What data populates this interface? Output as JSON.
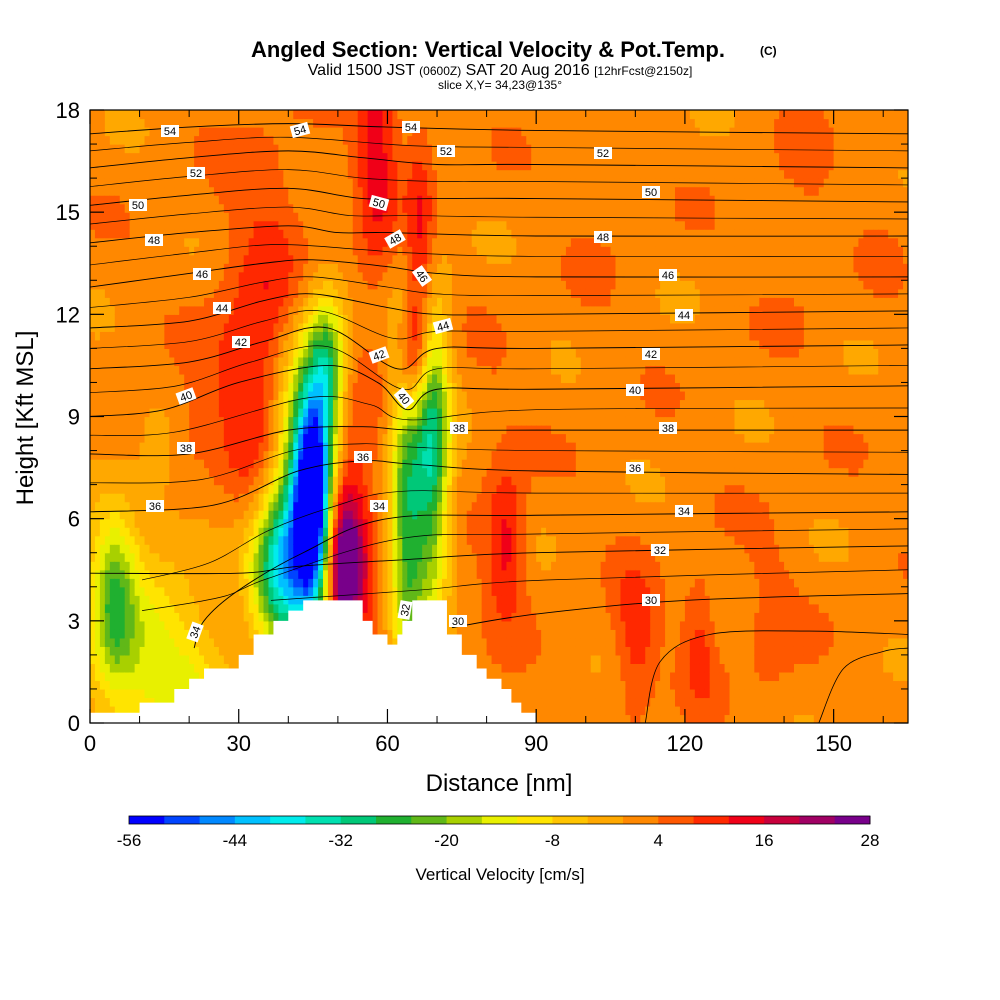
{
  "chart_data": {
    "type": "heatmap",
    "title": "Angled Section: Vertical Velocity & Pot.Temp.",
    "title_units": "(C)",
    "subtitle": {
      "prefix": "Valid 1500 JST",
      "utc": "(0600Z)",
      "date": "SAT 20 Aug 2016",
      "forecast": "[12hrFcst@2150z]"
    },
    "slice_text": "slice X,Y= 34,23@135°",
    "xlabel": "Distance [nm]",
    "ylabel": "Height [Kft MSL]",
    "xlim": [
      0,
      165
    ],
    "ylim": [
      0,
      18
    ],
    "x_ticks": [
      "0",
      "30",
      "60",
      "90",
      "120",
      "150"
    ],
    "y_ticks": [
      "0",
      "3",
      "6",
      "9",
      "12",
      "15",
      "18"
    ],
    "colorbar": {
      "label": "Vertical Velocity [cm/s]",
      "range": [
        -56,
        28
      ],
      "step": 4,
      "tick_labels": [
        "-56",
        "-44",
        "-32",
        "-20",
        "-8",
        "4",
        "16",
        "28"
      ],
      "colors": [
        "#0000ff",
        "#0044ff",
        "#0088ff",
        "#00c0ff",
        "#00ecec",
        "#00e0b0",
        "#00c878",
        "#20b030",
        "#60b818",
        "#a8d000",
        "#e8f000",
        "#ffe400",
        "#ffc400",
        "#ffa800",
        "#ff8800",
        "#ff5800",
        "#ff2800",
        "#f00018",
        "#c8003c",
        "#a00064",
        "#78008a"
      ]
    },
    "terrain_steps": [
      [
        0,
        0.3
      ],
      [
        10,
        0.6
      ],
      [
        17,
        1.0
      ],
      [
        20,
        1.3
      ],
      [
        23,
        1.6
      ],
      [
        30,
        2.0
      ],
      [
        33,
        2.6
      ],
      [
        37,
        3.0
      ],
      [
        40,
        3.3
      ],
      [
        43,
        3.6
      ],
      [
        55,
        3.0
      ],
      [
        57,
        2.6
      ],
      [
        60,
        2.3
      ],
      [
        62,
        2.6
      ],
      [
        63,
        3.0
      ],
      [
        65,
        3.6
      ],
      [
        72,
        2.6
      ],
      [
        75,
        2.0
      ],
      [
        78,
        1.6
      ],
      [
        80,
        1.3
      ],
      [
        83,
        1.0
      ],
      [
        85,
        0.6
      ],
      [
        87,
        0.3
      ],
      [
        90,
        0
      ]
    ],
    "velocity_features": [
      {
        "x": 45,
        "y": 6.5,
        "sx": 2.5,
        "sy": 2.2,
        "v": -52
      },
      {
        "x": 43,
        "y": 7.0,
        "sx": 4.5,
        "sy": 3.5,
        "v": -38
      },
      {
        "x": 38,
        "y": 4.5,
        "sx": 4,
        "sy": 1.5,
        "v": -30
      },
      {
        "x": 48,
        "y": 10.5,
        "sx": 2.5,
        "sy": 1.5,
        "v": -24
      },
      {
        "x": 51,
        "y": 4.8,
        "sx": 2.5,
        "sy": 1.5,
        "v": 27
      },
      {
        "x": 52,
        "y": 5.2,
        "sx": 4,
        "sy": 2.5,
        "v": 18
      },
      {
        "x": 38,
        "y": 11.0,
        "sx": 7,
        "sy": 3.5,
        "v": 16
      },
      {
        "x": 30,
        "y": 9.5,
        "sx": 6,
        "sy": 2,
        "v": 6
      },
      {
        "x": 58,
        "y": 17.0,
        "sx": 3,
        "sy": 3,
        "v": 15
      },
      {
        "x": 66.5,
        "y": 13.5,
        "sx": 2.2,
        "sy": 3,
        "v": 16
      },
      {
        "x": 65,
        "y": 10.8,
        "sx": 2.2,
        "sy": 1.3,
        "v": 22
      },
      {
        "x": 64,
        "y": 6.5,
        "sx": 2.5,
        "sy": 4,
        "v": -28
      },
      {
        "x": 69,
        "y": 8.0,
        "sx": 2.5,
        "sy": 3,
        "v": -34
      },
      {
        "x": 84,
        "y": 5.3,
        "sx": 2.5,
        "sy": 1.5,
        "v": 14
      },
      {
        "x": 82,
        "y": 6.5,
        "sx": 4,
        "sy": 3,
        "v": 4
      },
      {
        "x": 110,
        "y": 2.5,
        "sx": 3,
        "sy": 1.5,
        "v": 12
      },
      {
        "x": 123,
        "y": 2.5,
        "sx": 2.5,
        "sy": 1.5,
        "v": 10
      },
      {
        "x": 137,
        "y": 2.8,
        "sx": 4,
        "sy": 2,
        "v": 6
      },
      {
        "x": 144,
        "y": 16.0,
        "sx": 4,
        "sy": 4,
        "v": 4
      },
      {
        "x": 102,
        "y": 14.0,
        "sx": 4,
        "sy": 4,
        "v": 3
      },
      {
        "x": 160,
        "y": 15.5,
        "sx": 4,
        "sy": 3,
        "v": 3
      },
      {
        "x": 5,
        "y": 3.6,
        "sx": 3,
        "sy": 1.8,
        "v": -18
      },
      {
        "x": 10,
        "y": 2.5,
        "sx": 10,
        "sy": 3,
        "v": -10
      },
      {
        "x": 20,
        "y": 1.0,
        "sx": 8,
        "sy": 1.3,
        "v": -9
      },
      {
        "x": 20,
        "y": 8.3,
        "sx": 3,
        "sy": 1,
        "v": 6
      },
      {
        "x": 8,
        "y": 8.5,
        "sx": 3,
        "sy": 1,
        "v": 4
      }
    ],
    "theta_contours": [
      {
        "label": "30",
        "pts": [
          [
            73,
            2.8
          ],
          [
            90,
            3.2
          ],
          [
            120,
            3.6
          ],
          [
            165,
            3.8
          ]
        ],
        "lx": 458,
        "ly": 621,
        "rot": 0
      },
      {
        "label": "32",
        "pts": [
          [
            0,
            4.4
          ],
          [
            30,
            4.4
          ],
          [
            42,
            4.6
          ],
          [
            64,
            4.8
          ],
          [
            90,
            5.0
          ],
          [
            165,
            5.2
          ]
        ],
        "lx": 660,
        "ly": 550,
        "rot": 0
      },
      {
        "label": "34",
        "pts": [
          [
            21,
            2.2
          ],
          [
            23,
            3.0
          ],
          [
            30,
            3.9
          ],
          [
            43,
            5.0
          ],
          [
            60,
            6.0
          ],
          [
            90,
            6.1
          ],
          [
            165,
            6.2
          ]
        ],
        "lx": 195,
        "ly": 632,
        "rot": -70
      },
      {
        "label": "36",
        "pts": [
          [
            0,
            6.2
          ],
          [
            25,
            6.4
          ],
          [
            42,
            7.4
          ],
          [
            55,
            7.7
          ],
          [
            65,
            7.6
          ],
          [
            90,
            7.4
          ],
          [
            165,
            7.3
          ]
        ],
        "lx": 155,
        "ly": 506,
        "rot": 0
      },
      {
        "label": "38",
        "pts": [
          [
            0,
            7.9
          ],
          [
            20,
            7.9
          ],
          [
            40,
            8.6
          ],
          [
            55,
            8.7
          ],
          [
            65,
            8.6
          ],
          [
            90,
            8.6
          ],
          [
            165,
            8.6
          ]
        ],
        "lx": 186,
        "ly": 448,
        "rot": 0
      },
      {
        "label": "40",
        "pts": [
          [
            0,
            9.0
          ],
          [
            15,
            9.2
          ],
          [
            30,
            10.0
          ],
          [
            48,
            10.5
          ],
          [
            58,
            10.0
          ],
          [
            64,
            9.2
          ],
          [
            70,
            9.8
          ],
          [
            90,
            9.8
          ],
          [
            165,
            9.9
          ]
        ],
        "lx": 186,
        "ly": 396,
        "rot": -20
      },
      {
        "label": "42",
        "pts": [
          [
            0,
            10.4
          ],
          [
            20,
            10.6
          ],
          [
            35,
            11.2
          ],
          [
            48,
            11.6
          ],
          [
            62,
            10.4
          ],
          [
            70,
            11.0
          ],
          [
            90,
            11.0
          ],
          [
            165,
            11.1
          ]
        ],
        "lx": 241,
        "ly": 342,
        "rot": 0
      },
      {
        "label": "44",
        "pts": [
          [
            0,
            11.6
          ],
          [
            20,
            11.8
          ],
          [
            35,
            12.4
          ],
          [
            45,
            12.6
          ],
          [
            60,
            12.2
          ],
          [
            70,
            12.0
          ],
          [
            90,
            12.0
          ],
          [
            165,
            12.1
          ]
        ],
        "lx": 222,
        "ly": 308,
        "rot": 0
      },
      {
        "label": "46",
        "pts": [
          [
            0,
            12.8
          ],
          [
            20,
            13.2
          ],
          [
            35,
            13.5
          ],
          [
            45,
            13.6
          ],
          [
            60,
            13.4
          ],
          [
            70,
            13.2
          ],
          [
            90,
            13.1
          ],
          [
            165,
            13.1
          ]
        ],
        "lx": 202,
        "ly": 274,
        "rot": 0
      },
      {
        "label": "48",
        "pts": [
          [
            0,
            14.1
          ],
          [
            20,
            14.4
          ],
          [
            40,
            14.6
          ],
          [
            50,
            14.4
          ],
          [
            60,
            14.4
          ],
          [
            90,
            14.3
          ],
          [
            165,
            14.3
          ]
        ],
        "lx": 154,
        "ly": 240,
        "rot": 0
      },
      {
        "label": "50",
        "pts": [
          [
            0,
            15.2
          ],
          [
            20,
            15.5
          ],
          [
            40,
            15.7
          ],
          [
            55,
            15.4
          ],
          [
            70,
            15.4
          ],
          [
            90,
            15.4
          ],
          [
            165,
            15.3
          ]
        ],
        "lx": 138,
        "ly": 205,
        "rot": 0
      },
      {
        "label": "52",
        "pts": [
          [
            0,
            16.3
          ],
          [
            20,
            16.6
          ],
          [
            40,
            16.8
          ],
          [
            55,
            16.6
          ],
          [
            70,
            16.4
          ],
          [
            90,
            16.4
          ],
          [
            165,
            16.3
          ]
        ],
        "lx": 196,
        "ly": 173,
        "rot": 0
      },
      {
        "label": "54",
        "pts": [
          [
            0,
            17.3
          ],
          [
            20,
            17.5
          ],
          [
            40,
            17.6
          ],
          [
            60,
            17.5
          ],
          [
            90,
            17.4
          ],
          [
            165,
            17.3
          ]
        ],
        "lx": 170,
        "ly": 131,
        "rot": 0
      }
    ],
    "contour_labels": [
      {
        "t": "54",
        "x": 300,
        "y": 130,
        "rot": -15
      },
      {
        "t": "54",
        "x": 411,
        "y": 127,
        "rot": 0
      },
      {
        "t": "52",
        "x": 446,
        "y": 151,
        "rot": 0
      },
      {
        "t": "52",
        "x": 603,
        "y": 153,
        "rot": 0
      },
      {
        "t": "50",
        "x": 379,
        "y": 203,
        "rot": 15
      },
      {
        "t": "50",
        "x": 651,
        "y": 192,
        "rot": 0
      },
      {
        "t": "48",
        "x": 395,
        "y": 239,
        "rot": -30
      },
      {
        "t": "48",
        "x": 603,
        "y": 237,
        "rot": 0
      },
      {
        "t": "46",
        "x": 422,
        "y": 276,
        "rot": 55
      },
      {
        "t": "46",
        "x": 668,
        "y": 275,
        "rot": 0
      },
      {
        "t": "44",
        "x": 443,
        "y": 326,
        "rot": -15
      },
      {
        "t": "44",
        "x": 684,
        "y": 315,
        "rot": 0
      },
      {
        "t": "42",
        "x": 379,
        "y": 355,
        "rot": -20
      },
      {
        "t": "42",
        "x": 651,
        "y": 354,
        "rot": 0
      },
      {
        "t": "40",
        "x": 404,
        "y": 398,
        "rot": 50
      },
      {
        "t": "40",
        "x": 635,
        "y": 390,
        "rot": 0
      },
      {
        "t": "38",
        "x": 459,
        "y": 428,
        "rot": 0
      },
      {
        "t": "38",
        "x": 668,
        "y": 428,
        "rot": 0
      },
      {
        "t": "36",
        "x": 363,
        "y": 457,
        "rot": 0
      },
      {
        "t": "36",
        "x": 635,
        "y": 468,
        "rot": 0
      },
      {
        "t": "34",
        "x": 379,
        "y": 506,
        "rot": 0
      },
      {
        "t": "34",
        "x": 684,
        "y": 511,
        "rot": 0
      },
      {
        "t": "32",
        "x": 405,
        "y": 610,
        "rot": -80
      },
      {
        "t": "30",
        "x": 651,
        "y": 600,
        "rot": 0
      }
    ]
  }
}
